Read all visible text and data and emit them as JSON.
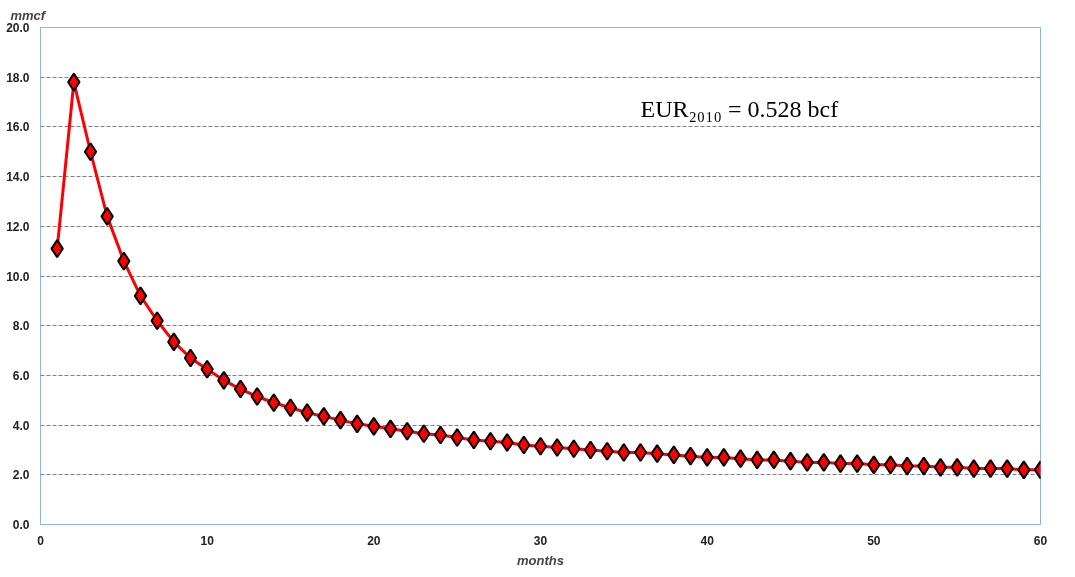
{
  "chart_data": {
    "type": "line",
    "xlabel": "months",
    "ylabel": "mmcf",
    "x": [
      1,
      2,
      3,
      4,
      5,
      6,
      7,
      8,
      9,
      10,
      11,
      12,
      13,
      14,
      15,
      16,
      17,
      18,
      19,
      20,
      21,
      22,
      23,
      24,
      25,
      26,
      27,
      28,
      29,
      30,
      31,
      32,
      33,
      34,
      35,
      36,
      37,
      38,
      39,
      40,
      41,
      42,
      43,
      44,
      45,
      46,
      47,
      48,
      49,
      50,
      51,
      52,
      53,
      54,
      55,
      56,
      57,
      58,
      59,
      60
    ],
    "series": [
      {
        "color": "#ff0000",
        "values": [
          11.1,
          17.8,
          15.0,
          12.4,
          10.6,
          9.2,
          8.2,
          7.35,
          6.7,
          6.25,
          5.8,
          5.45,
          5.15,
          4.9,
          4.7,
          4.5,
          4.35,
          4.2,
          4.05,
          3.95,
          3.85,
          3.75,
          3.65,
          3.6,
          3.5,
          3.4,
          3.35,
          3.3,
          3.2,
          3.15,
          3.1,
          3.05,
          3.0,
          2.95,
          2.9,
          2.9,
          2.85,
          2.8,
          2.75,
          2.7,
          2.7,
          2.65,
          2.6,
          2.6,
          2.55,
          2.5,
          2.5,
          2.45,
          2.45,
          2.4,
          2.4,
          2.35,
          2.35,
          2.3,
          2.3,
          2.25,
          2.25,
          2.25,
          2.2,
          2.2
        ]
      }
    ],
    "annotations": [
      "EUR₂₀₁₀ = 0.528 bcf"
    ],
    "xlim": [
      0,
      60
    ],
    "xticks": [
      0,
      10,
      20,
      30,
      40,
      50,
      60
    ],
    "ylim": [
      0,
      20
    ],
    "yticks": [
      {
        "value": 0,
        "label": "0.0"
      },
      {
        "value": 2,
        "label": "2.0"
      },
      {
        "value": 4,
        "label": "4.0"
      },
      {
        "value": 6,
        "label": "6.0"
      },
      {
        "value": 8,
        "label": "8.0"
      },
      {
        "value": 10,
        "label": "10.0"
      },
      {
        "value": 12,
        "label": "12.0"
      },
      {
        "value": 14,
        "label": "14.0"
      },
      {
        "value": 16,
        "label": "16.0"
      },
      {
        "value": 18,
        "label": "18.0"
      },
      {
        "value": 20,
        "label": "20.0"
      }
    ],
    "grid": "y",
    "marker": "diamond",
    "line_style": "solid"
  }
}
